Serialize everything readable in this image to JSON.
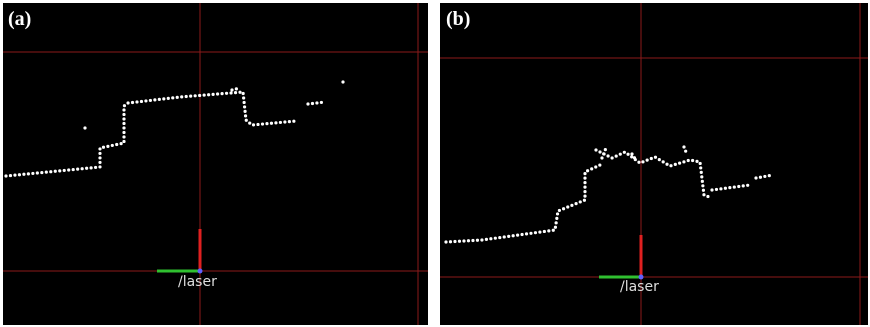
{
  "panels": [
    {
      "label": "(a)",
      "frame": "/laser"
    },
    {
      "label": "(b)",
      "frame": "/laser"
    }
  ]
}
